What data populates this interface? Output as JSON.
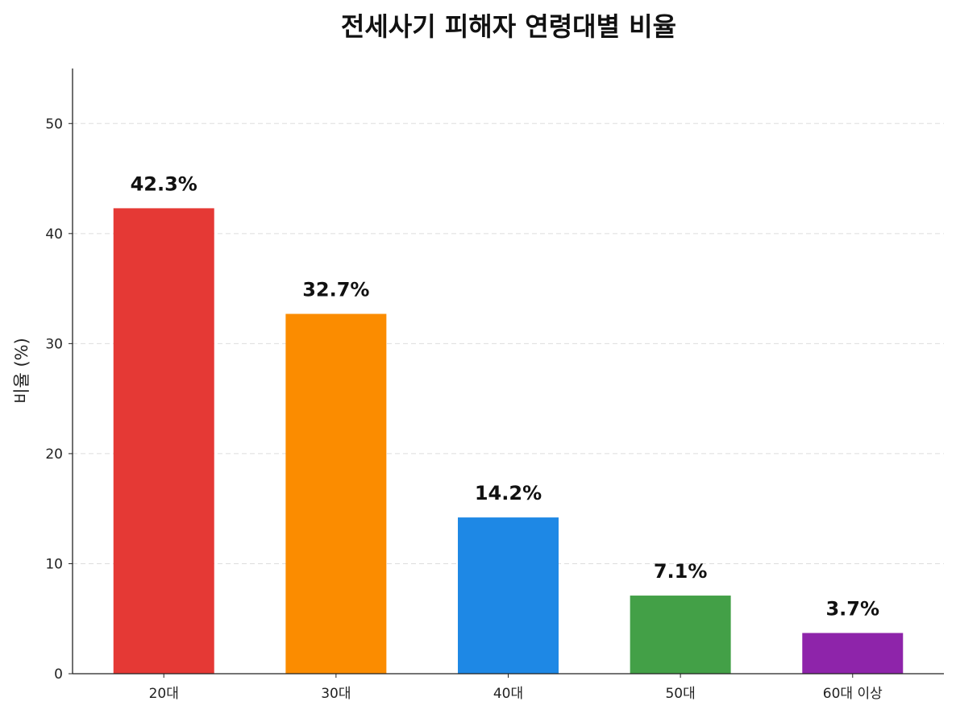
{
  "chart_data": {
    "type": "bar",
    "title": "전세사기 피해자 연령대별 비율",
    "xlabel": "",
    "ylabel": "비율 (%)",
    "categories": [
      "20대",
      "30대",
      "40대",
      "50대",
      "60대 이상"
    ],
    "values": [
      42.3,
      32.7,
      14.2,
      7.1,
      3.7
    ],
    "data_labels": [
      "42.3%",
      "32.7%",
      "14.2%",
      "7.1%",
      "3.7%"
    ],
    "colors": [
      "#E53935",
      "#FB8C00",
      "#1E88E5",
      "#43A047",
      "#8E24AA"
    ],
    "ylim": [
      0,
      55
    ],
    "yticks": [
      0,
      10,
      20,
      30,
      40,
      50
    ],
    "grid": "y-dashed",
    "legend": "none"
  }
}
